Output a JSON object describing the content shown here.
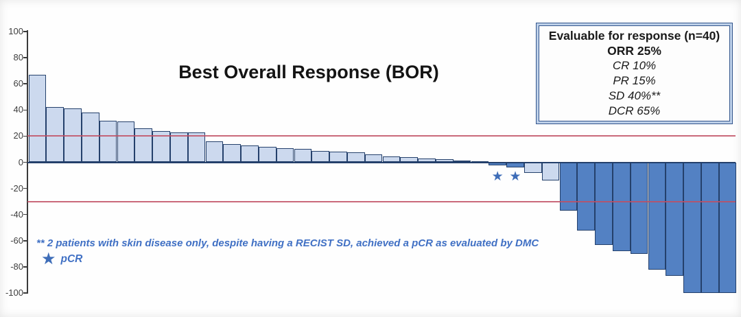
{
  "chart_data": {
    "type": "bar",
    "chart_kind": "waterfall",
    "title": "Best Overall Response (BOR)",
    "xlabel": "",
    "ylabel": "",
    "ylim": [
      -100,
      100
    ],
    "y_ticks": [
      100,
      80,
      60,
      40,
      20,
      0,
      -20,
      -40,
      -60,
      -80,
      -100
    ],
    "reference_lines": [
      20,
      -30
    ],
    "grid": false,
    "legend_position": "top-right",
    "values": [
      67,
      42,
      41,
      38,
      32,
      31,
      26,
      24,
      23,
      23,
      16,
      14,
      13,
      12,
      11,
      10,
      8.5,
      8,
      7.5,
      6,
      4.5,
      4,
      3,
      2.5,
      1.5,
      1,
      -2.5,
      -4,
      -8,
      -14,
      -37,
      -52,
      -63,
      -68,
      -70,
      -82,
      -87,
      -100,
      -100,
      -100
    ],
    "bar_groups": [
      "light",
      "light",
      "light",
      "light",
      "light",
      "light",
      "light",
      "light",
      "light",
      "light",
      "light",
      "light",
      "light",
      "light",
      "light",
      "light",
      "light",
      "light",
      "light",
      "light",
      "light",
      "light",
      "light",
      "light",
      "light",
      "light",
      "dark",
      "dark",
      "light",
      "light",
      "dark",
      "dark",
      "dark",
      "dark",
      "dark",
      "dark",
      "dark",
      "dark",
      "dark",
      "dark"
    ],
    "starred_bars": [
      27,
      28
    ]
  },
  "legend": {
    "lines": [
      {
        "text": "Evaluable for response (n=40)",
        "style": "bold"
      },
      {
        "text": "ORR 25%",
        "style": "bold"
      },
      {
        "text": "CR 10%",
        "style": "italic"
      },
      {
        "text": "PR 15%",
        "style": "italic"
      },
      {
        "text": "SD 40%**",
        "style": "italic"
      },
      {
        "text": "DCR 65%",
        "style": "italic"
      }
    ]
  },
  "footnote": {
    "text": "** 2 patients with skin disease only, despite having a RECIST SD, achieved a pCR as evaluated by DMC",
    "star_symbol": "★",
    "star_label": "pCR"
  },
  "colors": {
    "bar_light": "#ccd9ee",
    "bar_dark": "#5381c3",
    "bar_border": "#24406b",
    "reference_line": "#c14f63",
    "zero_line": "#24406b",
    "star": "#3e6db8",
    "footnote_text": "#4070c4",
    "legend_border": "#33558c",
    "legend_frame": "#bdd0e9",
    "axis": "#3a3a3a"
  }
}
